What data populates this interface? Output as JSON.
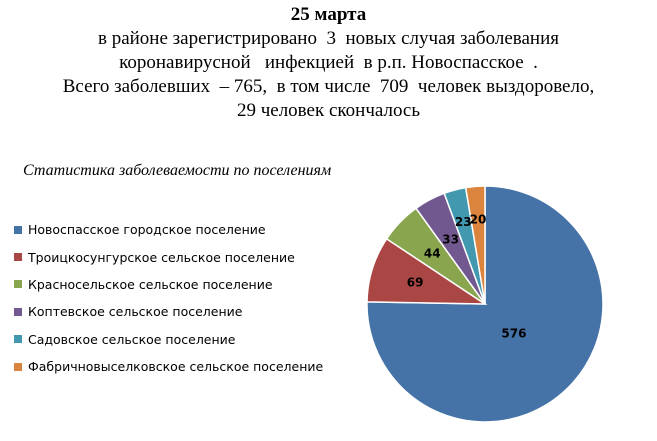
{
  "header": {
    "date": "25 марта",
    "line1": "в районе зарегистрировано  3  новых случая заболевания",
    "line2": "коронавирусной   инфекцией  в р.п. Новоспасское  .",
    "line3": "Всего заболевших  – 765,  в том числе  709  человек выздоровело,",
    "line4": "29 человек скончалось"
  },
  "chart_data": {
    "type": "pie",
    "title": "Статистика  заболеваемости по поселениям",
    "legend_position": "left",
    "categories": [
      "Новоспасское городское поселение",
      "Троицкосунгурское сельское поселение",
      "Красносельское сельское поселение",
      "Коптевское сельское поселение",
      "Садовское сельское поселение",
      "Фабричновыселковское сельское поселение"
    ],
    "values": [
      576,
      69,
      44,
      33,
      23,
      20
    ],
    "colors": [
      "#4572A7",
      "#AA4643",
      "#89A54E",
      "#71588F",
      "#4198AF",
      "#DB843D"
    ]
  }
}
